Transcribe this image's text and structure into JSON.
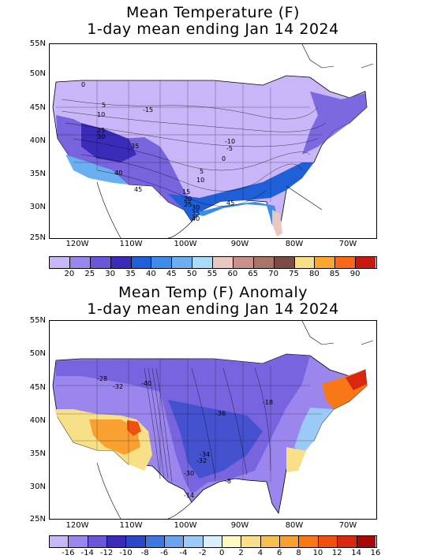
{
  "top": {
    "title_line1": "Mean Temperature (F)",
    "title_line2": "1-day mean ending Jan 14 2024",
    "lat_labels": [
      "55N",
      "50N",
      "45N",
      "40N",
      "35N",
      "30N",
      "25N"
    ],
    "lon_labels": [
      "120W",
      "110W",
      "100W",
      "90W",
      "80W",
      "70W"
    ],
    "colorbar_labels": [
      "20",
      "25",
      "30",
      "35",
      "40",
      "45",
      "50",
      "55",
      "60",
      "65",
      "70",
      "75",
      "80",
      "85",
      "90"
    ],
    "colorbar_colors": [
      "#c8b6f8",
      "#9a86ec",
      "#6a56d8",
      "#3a2cb8",
      "#1f5fd8",
      "#3c8ce8",
      "#6ab0f0",
      "#a8dcf8",
      "#e8c8c0",
      "#c89088",
      "#a87468",
      "#7a4c44",
      "#f8e088",
      "#f8a830",
      "#f86818",
      "#c81810"
    ],
    "contour_labels": [
      "0",
      "5",
      "10",
      "-15",
      "25",
      "30",
      "35",
      "40",
      "45",
      "-10",
      "-5",
      "0",
      "5",
      "10",
      "15",
      "20",
      "25",
      "30",
      "35",
      "40",
      "45"
    ]
  },
  "bottom": {
    "title_line1": "Mean Temp (F) Anomaly",
    "title_line2": "1-day mean ending Jan 14 2024",
    "lat_labels": [
      "55N",
      "50N",
      "45N",
      "40N",
      "35N",
      "30N",
      "25N"
    ],
    "lon_labels": [
      "120W",
      "110W",
      "100W",
      "90W",
      "80W",
      "70W"
    ],
    "colorbar_labels": [
      "-16",
      "-14",
      "-12",
      "-10",
      "-8",
      "-6",
      "-4",
      "-2",
      "0",
      "2",
      "4",
      "6",
      "8",
      "10",
      "12",
      "14",
      "16"
    ],
    "colorbar_colors": [
      "#c8b6f8",
      "#9a86ec",
      "#6a56d8",
      "#3a2cb8",
      "#2a48c8",
      "#3c78e0",
      "#6aa4ee",
      "#9ccaf6",
      "#d8f0fc",
      "#fff8c0",
      "#f8e088",
      "#f8c050",
      "#f8a030",
      "#f87818",
      "#f05010",
      "#d82810",
      "#a80808"
    ],
    "contour_labels": [
      "-28",
      "-32",
      "-40",
      "-36",
      "-18",
      "-34",
      "-32",
      "-30",
      "-8",
      "-14"
    ]
  }
}
